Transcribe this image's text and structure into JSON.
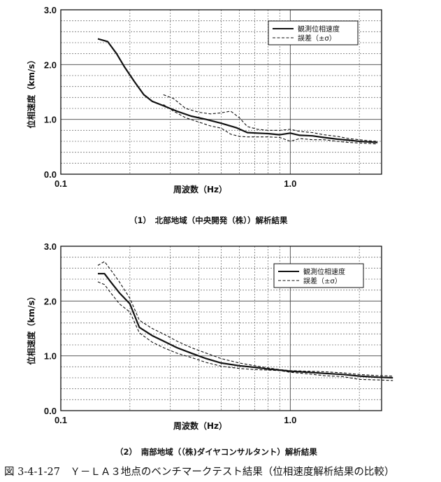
{
  "chart_data": [
    {
      "type": "line",
      "caption": "（1）　北部地域（中央開発（株））解析結果",
      "xlabel": "周波数（Hz）",
      "ylabel": "位相速度（km/s）",
      "xscale": "log",
      "xlim": [
        0.1,
        2.5
      ],
      "ylim": [
        0.0,
        3.0
      ],
      "x_ticks": [
        "0.1",
        "1.0"
      ],
      "y_ticks": [
        "0.0",
        "1.0",
        "2.0",
        "3.0"
      ],
      "grid": true,
      "legend_position": "top-right",
      "series": [
        {
          "name": "観測位相速度",
          "style": "solid",
          "x": [
            0.145,
            0.16,
            0.175,
            0.19,
            0.21,
            0.23,
            0.25,
            0.28,
            0.32,
            0.37,
            0.43,
            0.5,
            0.58,
            0.65,
            0.72,
            0.8,
            0.9,
            1.0,
            1.1,
            1.25,
            1.4,
            1.6,
            1.8,
            2.0,
            2.2,
            2.4
          ],
          "y": [
            2.47,
            2.42,
            2.2,
            1.95,
            1.68,
            1.45,
            1.33,
            1.25,
            1.15,
            1.06,
            1.0,
            0.93,
            0.85,
            0.76,
            0.75,
            0.74,
            0.72,
            0.75,
            0.71,
            0.7,
            0.67,
            0.64,
            0.62,
            0.6,
            0.59,
            0.58
          ]
        },
        {
          "name": "誤差（±σ）",
          "style": "dashed",
          "x": [
            0.28,
            0.31,
            0.35,
            0.4,
            0.45,
            0.5,
            0.55,
            0.6,
            0.65,
            0.72,
            0.8,
            0.9,
            1.0,
            1.1,
            1.25,
            1.4,
            1.6,
            1.8,
            2.0,
            2.2,
            2.4
          ],
          "y": [
            1.45,
            1.38,
            1.2,
            1.13,
            1.1,
            1.12,
            1.15,
            1.03,
            0.87,
            0.82,
            0.8,
            0.8,
            0.82,
            0.78,
            0.76,
            0.72,
            0.69,
            0.65,
            0.63,
            0.61,
            0.6
          ]
        },
        {
          "name": "",
          "style": "dashed",
          "x": [
            0.28,
            0.31,
            0.35,
            0.4,
            0.45,
            0.5,
            0.55,
            0.6,
            0.65,
            0.72,
            0.8,
            0.9,
            1.0,
            1.1,
            1.25,
            1.4,
            1.6,
            1.8,
            2.0,
            2.2,
            2.4
          ],
          "y": [
            1.27,
            1.15,
            1.03,
            0.95,
            0.88,
            0.84,
            0.73,
            0.69,
            0.68,
            0.68,
            0.68,
            0.67,
            0.6,
            0.65,
            0.63,
            0.63,
            0.6,
            0.58,
            0.57,
            0.56,
            0.55
          ]
        }
      ]
    },
    {
      "type": "line",
      "caption": "（2）　南部地域（（株)ダイヤコンサルタント）解析結果",
      "xlabel": "周波数（Hz）",
      "ylabel": "位相速度（km/s）",
      "xscale": "log",
      "xlim": [
        0.1,
        2.5
      ],
      "ylim": [
        0.0,
        3.0
      ],
      "x_ticks": [
        "0.1",
        "1.0"
      ],
      "y_ticks": [
        "0.0",
        "1.0",
        "2.0",
        "3.0"
      ],
      "grid": true,
      "legend_position": "top-right",
      "series": [
        {
          "name": "観測位相速度",
          "style": "solid",
          "x": [
            0.145,
            0.155,
            0.165,
            0.18,
            0.2,
            0.22,
            0.25,
            0.28,
            0.32,
            0.37,
            0.43,
            0.5,
            0.6,
            0.7,
            0.8,
            0.9,
            1.0,
            1.2,
            1.4,
            1.7,
            2.0,
            2.4,
            2.8
          ],
          "y": [
            2.5,
            2.5,
            2.35,
            2.15,
            1.95,
            1.52,
            1.37,
            1.27,
            1.15,
            1.05,
            0.95,
            0.87,
            0.82,
            0.79,
            0.76,
            0.74,
            0.72,
            0.7,
            0.68,
            0.66,
            0.63,
            0.61,
            0.6
          ]
        },
        {
          "name": "誤差（±σ）",
          "style": "dashed",
          "x": [
            0.145,
            0.155,
            0.165,
            0.18,
            0.2,
            0.22,
            0.25,
            0.28,
            0.32,
            0.37,
            0.43,
            0.5,
            0.6,
            0.7,
            0.8,
            0.9,
            1.0,
            1.2,
            1.4,
            1.7,
            2.0,
            2.4,
            2.8
          ],
          "y": [
            2.65,
            2.72,
            2.57,
            2.35,
            2.05,
            1.65,
            1.5,
            1.4,
            1.27,
            1.15,
            1.05,
            0.95,
            0.87,
            0.82,
            0.78,
            0.75,
            0.73,
            0.72,
            0.71,
            0.69,
            0.66,
            0.64,
            0.63
          ]
        },
        {
          "name": "",
          "style": "dashed",
          "x": [
            0.145,
            0.155,
            0.165,
            0.18,
            0.2,
            0.22,
            0.25,
            0.28,
            0.32,
            0.37,
            0.43,
            0.5,
            0.6,
            0.7,
            0.8,
            0.9,
            1.0,
            1.2,
            1.4,
            1.7,
            2.0,
            2.4,
            2.8
          ],
          "y": [
            2.35,
            2.3,
            2.15,
            1.95,
            1.8,
            1.42,
            1.25,
            1.15,
            1.05,
            0.97,
            0.88,
            0.81,
            0.77,
            0.75,
            0.74,
            0.73,
            0.7,
            0.67,
            0.64,
            0.62,
            0.57,
            0.56,
            0.55
          ]
        }
      ]
    }
  ],
  "figure_caption": "図 3-4-1-27　Ｙ－ＬＡ３地点のベンチマークテスト結果（位相速度解析結果の比較）"
}
